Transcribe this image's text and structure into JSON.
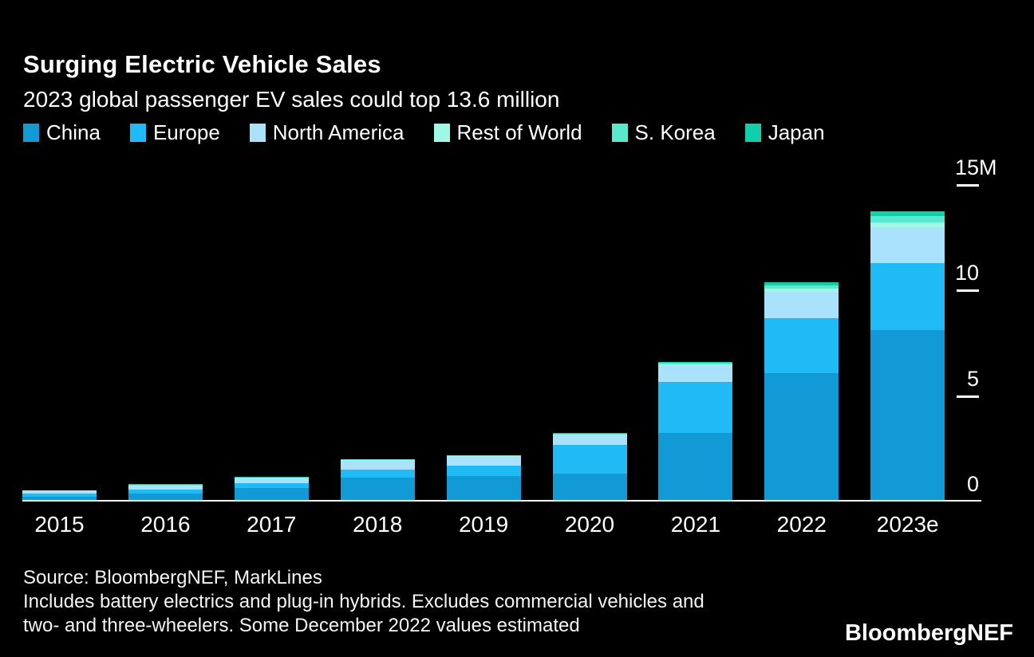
{
  "header": {
    "title": "Surging Electric Vehicle Sales",
    "subtitle": "2023 global passenger EV sales could top 13.6 million"
  },
  "legend": [
    {
      "label": "China",
      "color": "#129ad6"
    },
    {
      "label": "Europe",
      "color": "#20baf7"
    },
    {
      "label": "North America",
      "color": "#aae2fb"
    },
    {
      "label": "Rest of World",
      "color": "#9ff7e6"
    },
    {
      "label": "S. Korea",
      "color": "#5ae9cd"
    },
    {
      "label": "Japan",
      "color": "#10cfaa"
    }
  ],
  "chart_data": {
    "type": "bar",
    "stacked": true,
    "title": "Surging Electric Vehicle Sales",
    "subtitle": "2023 global passenger EV sales could top 13.6 million",
    "unit": "million vehicles",
    "categories": [
      "2015",
      "2016",
      "2017",
      "2018",
      "2019",
      "2020",
      "2021",
      "2022",
      "2023e"
    ],
    "series": [
      {
        "name": "China",
        "color": "#129ad6",
        "values": [
          0.15,
          0.3,
          0.56,
          1.05,
          1.15,
          1.24,
          3.16,
          6.02,
          8.04
        ]
      },
      {
        "name": "Europe",
        "color": "#20baf7",
        "values": [
          0.15,
          0.19,
          0.25,
          0.38,
          0.47,
          1.38,
          2.42,
          2.58,
          3.17
        ]
      },
      {
        "name": "North America",
        "color": "#aae2fb",
        "values": [
          0.14,
          0.16,
          0.23,
          0.42,
          0.42,
          0.44,
          0.79,
          1.25,
          1.7
        ]
      },
      {
        "name": "Rest of World",
        "color": "#9ff7e6",
        "values": [
          0.0,
          0.04,
          0.01,
          0.03,
          0.03,
          0.04,
          0.05,
          0.15,
          0.25
        ]
      },
      {
        "name": "S. Korea",
        "color": "#5ae9cd",
        "values": [
          0.0,
          0.02,
          0.01,
          0.03,
          0.03,
          0.04,
          0.07,
          0.18,
          0.31
        ]
      },
      {
        "name": "Japan",
        "color": "#10cfaa",
        "values": [
          0.0,
          0.04,
          0.02,
          0.03,
          0.03,
          0.04,
          0.04,
          0.15,
          0.2
        ]
      }
    ],
    "ylim": [
      0,
      15
    ],
    "grid": false,
    "legend_position": "top",
    "y_ticks": [
      {
        "value": 0,
        "label": "0",
        "unit": ""
      },
      {
        "value": 5,
        "label": "5",
        "unit": ""
      },
      {
        "value": 10,
        "label": "10",
        "unit": ""
      },
      {
        "value": 15,
        "label": "15",
        "unit": "M"
      }
    ]
  },
  "source": {
    "lines": [
      "Source: BloombergNEF, MarkLines",
      "Includes battery electrics and plug-in hybrids. Excludes commercial vehicles and",
      "two- and three-wheelers. Some December 2022 values estimated"
    ]
  },
  "footer": {
    "logo": "BloombergNEF"
  }
}
